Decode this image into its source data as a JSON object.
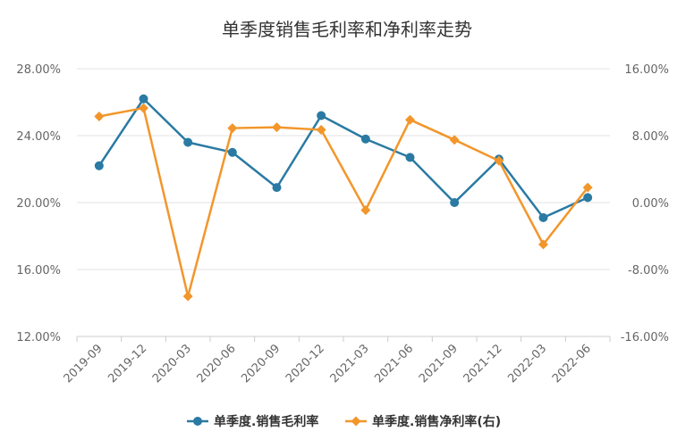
{
  "chart_data": {
    "type": "line",
    "title": "单季度销售毛利率和净利率走势",
    "categories": [
      "2019-09",
      "2019-12",
      "2020-03",
      "2020-06",
      "2020-09",
      "2020-12",
      "2021-03",
      "2021-06",
      "2021-09",
      "2021-12",
      "2022-03",
      "2022-06"
    ],
    "y_left": {
      "ticks": [
        "12.00%",
        "16.00%",
        "20.00%",
        "24.00%",
        "28.00%"
      ],
      "ylim": [
        12,
        28
      ]
    },
    "y_right": {
      "ticks": [
        "-16.00%",
        "-8.00%",
        "0.00%",
        "8.00%",
        "16.00%"
      ],
      "ylim": [
        -16,
        16
      ]
    },
    "series": [
      {
        "name": "单季度.销售毛利率",
        "axis": "left",
        "color": "#2a7aa3",
        "marker": "circle",
        "values": [
          22.2,
          26.2,
          23.6,
          23.0,
          20.9,
          25.2,
          23.8,
          22.7,
          20.0,
          22.6,
          19.1,
          20.3
        ]
      },
      {
        "name": "单季度.销售净利率(右)",
        "axis": "right",
        "color": "#f2962b",
        "marker": "diamond",
        "values": [
          10.3,
          11.3,
          -11.2,
          8.9,
          9.0,
          8.7,
          -0.9,
          9.9,
          7.5,
          5.0,
          -5.0,
          1.8
        ]
      }
    ],
    "grid": true,
    "legend": "bottom"
  }
}
